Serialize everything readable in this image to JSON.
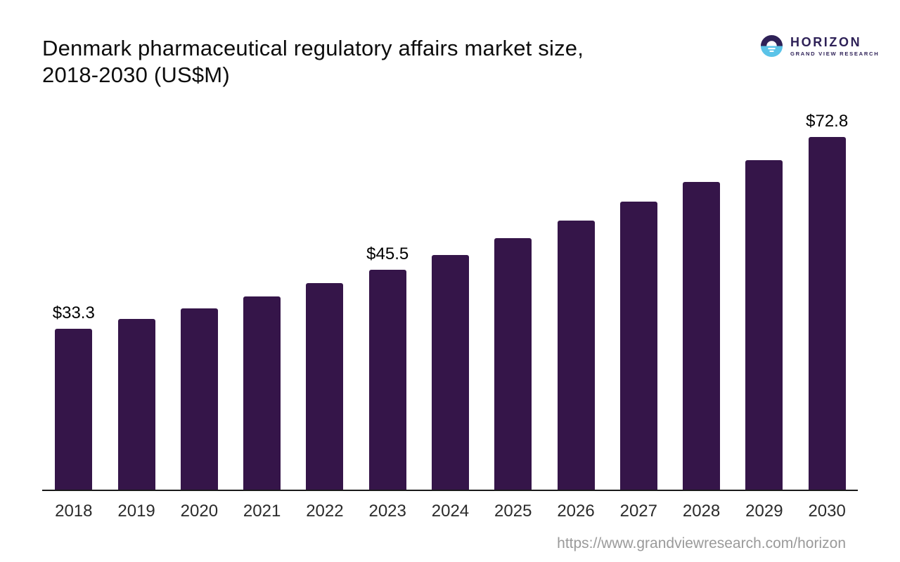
{
  "title": {
    "line1": "Denmark pharmaceutical regulatory affairs market size,",
    "line2": "2018-2030 (US$M)"
  },
  "logo": {
    "brand": "HORIZON",
    "subbrand": "GRAND VIEW RESEARCH"
  },
  "footer": {
    "url": "https://www.grandviewresearch.com/horizon"
  },
  "colors": {
    "bar": "#351549",
    "axis": "#1a1a1a",
    "logo_dark": "#2e2157",
    "logo_blue": "#5ac3e8",
    "value_label": "#000000",
    "year_label": "#2b2b2b",
    "url": "#9a9a9a"
  },
  "chart_data": {
    "type": "bar",
    "title": "Denmark pharmaceutical regulatory affairs market size, 2018-2030 (US$M)",
    "categories": [
      "2018",
      "2019",
      "2020",
      "2021",
      "2022",
      "2023",
      "2024",
      "2025",
      "2026",
      "2027",
      "2028",
      "2029",
      "2030"
    ],
    "values": [
      33.3,
      35.4,
      37.6,
      40.0,
      42.8,
      45.5,
      48.6,
      52.0,
      55.6,
      59.5,
      63.6,
      68.0,
      72.8
    ],
    "bar_labels": [
      "$33.3",
      null,
      null,
      null,
      null,
      "$45.5",
      null,
      null,
      null,
      null,
      null,
      null,
      "$72.8"
    ],
    "xlabel": "",
    "ylabel": "US$M",
    "ylim": [
      0,
      80
    ],
    "grid": false,
    "legend": null
  }
}
